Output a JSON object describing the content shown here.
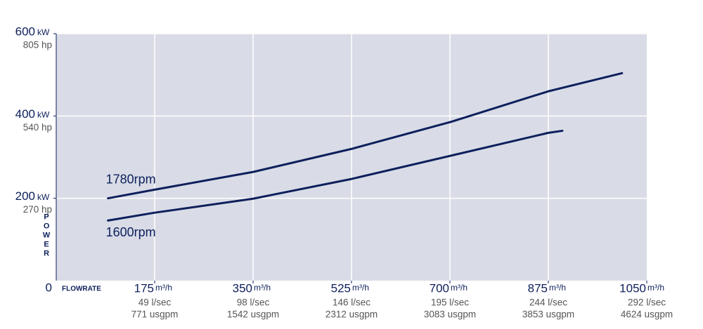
{
  "chart_data": {
    "type": "line",
    "x_label": "FLOWRATE",
    "y_label": "POWER",
    "xlim": [
      0,
      1050
    ],
    "xticks": [
      175,
      350,
      525,
      700,
      875,
      1050
    ],
    "x_unit": "m³/h",
    "x_secondary_labels": [
      "49 l/sec",
      "98 l/sec",
      "146 l/sec",
      "195 l/sec",
      "244 l/sec",
      "292 l/sec"
    ],
    "x_tertiary_labels": [
      "771 usgpm",
      "1542 usgpm",
      "2312 usgpm",
      "3083 usgpm",
      "3853 usgpm",
      "4624 usgpm"
    ],
    "ylim": [
      0,
      600
    ],
    "yticks": [
      0,
      200,
      400,
      600
    ],
    "y_unit": "kW",
    "y_secondary_labels": [
      null,
      "270 hp",
      "540 hp",
      "805 hp"
    ],
    "grid": true,
    "series": [
      {
        "name": "1780rpm",
        "color": "#0d1f5c",
        "x": [
          92,
          175,
          350,
          525,
          700,
          875,
          1006
        ],
        "values": [
          200,
          221,
          264,
          320,
          385,
          460,
          504
        ]
      },
      {
        "name": "1600rpm",
        "color": "#0d1f5c",
        "x": [
          92,
          175,
          350,
          525,
          700,
          875,
          900
        ],
        "values": [
          146,
          165,
          199,
          247,
          303,
          359,
          364
        ]
      }
    ]
  }
}
